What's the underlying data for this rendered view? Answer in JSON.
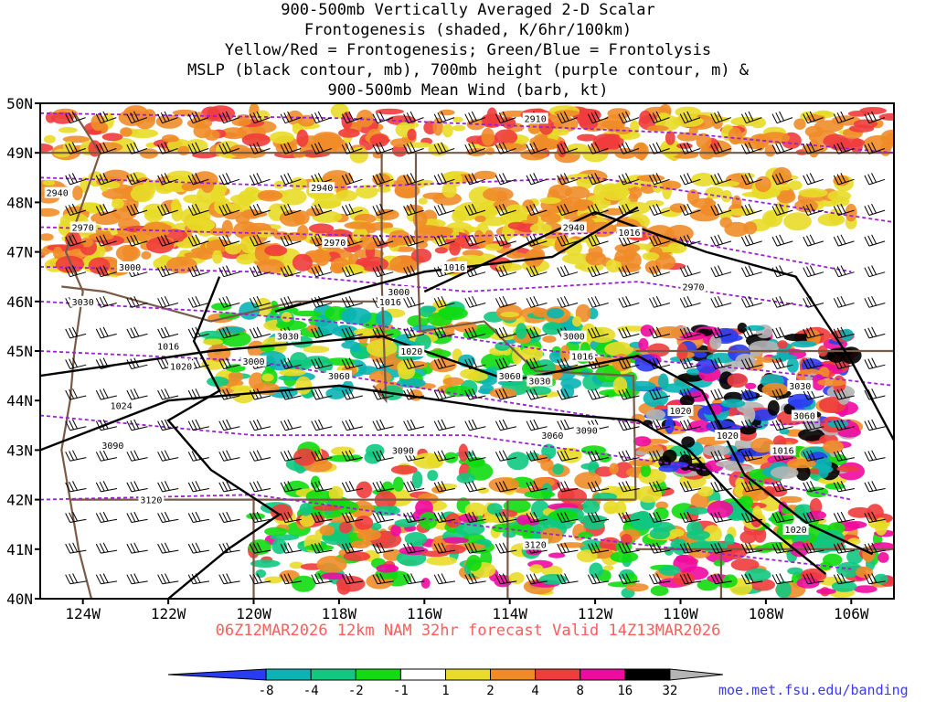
{
  "title_lines": [
    "900-500mb Vertically Averaged 2-D Scalar",
    "Frontogenesis (shaded, K/6hr/100km)",
    "Yellow/Red = Frontogenesis;  Green/Blue = Frontolysis",
    "MSLP (black contour, mb), 700mb height (purple contour, m) &",
    "900-500mb Mean Wind (barb, kt)"
  ],
  "valid_line": "06Z12MAR2026 12km NAM 32hr forecast Valid 14Z13MAR2026",
  "credit": "moe.met.fsu.edu/banding",
  "lat_labels": [
    "50N",
    "49N",
    "48N",
    "47N",
    "46N",
    "45N",
    "44N",
    "43N",
    "42N",
    "41N",
    "40N"
  ],
  "lon_labels": [
    "124W",
    "122W",
    "120W",
    "118W",
    "116W",
    "114W",
    "112W",
    "110W",
    "108W",
    "106W"
  ],
  "colorbar": {
    "tick_labels": [
      "-8",
      "-4",
      "-2",
      "-1",
      "1",
      "2",
      "4",
      "8",
      "16",
      "32"
    ],
    "colors": [
      "#2a3cf0",
      "#0ab4b4",
      "#10c880",
      "#10dc10",
      "#ffffff",
      "#e8dc28",
      "#f08c28",
      "#f03c3c",
      "#f00aa0",
      "#000000",
      "#b4b4b4"
    ]
  },
  "mslp_contour_labels": [
    "1016",
    "1016",
    "1016",
    "1016",
    "1016",
    "1016",
    "1016",
    "1020",
    "1020",
    "1020",
    "1020",
    "1020",
    "1024"
  ],
  "height_contour_labels": [
    "2910",
    "2940",
    "2940",
    "2940",
    "2970",
    "2970",
    "2970",
    "3000",
    "3000",
    "3000",
    "3000",
    "3030",
    "3030",
    "3030",
    "3030",
    "3060",
    "3060",
    "3060",
    "3060",
    "3090",
    "3090",
    "3090",
    "3120",
    "3120"
  ],
  "map_extent": {
    "lon_min": -125,
    "lon_max": -105,
    "lat_min": 40,
    "lat_max": 50
  },
  "colors": {
    "frame": "#000000",
    "border": "#7a5a46",
    "mslp": "#000000",
    "height": "#9b1fd6",
    "valid_text": "#ff5c5c",
    "credit_text": "#3a3aff"
  }
}
